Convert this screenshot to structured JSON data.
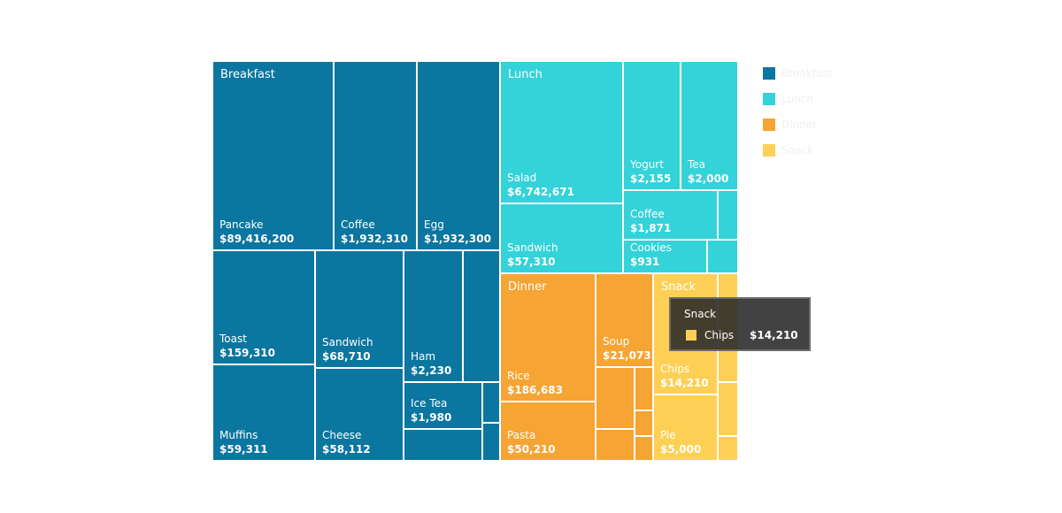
{
  "chart_data": {
    "type": "treemap",
    "value_format": "currency",
    "groups": [
      {
        "name": "Breakfast",
        "color": "#0b769f",
        "items": [
          {
            "name": "Pancake",
            "value": 89416200,
            "label": "$89,416,200"
          },
          {
            "name": "Coffee",
            "value": 1932310,
            "label": "$1,932,310"
          },
          {
            "name": "Egg",
            "value": 1932300,
            "label": "$1,932,300"
          },
          {
            "name": "Toast",
            "value": 159310,
            "label": "$159,310"
          },
          {
            "name": "Sandwich",
            "value": 68710,
            "label": "$68,710"
          },
          {
            "name": "Muffins",
            "value": 59311,
            "label": "$59,311"
          },
          {
            "name": "Cheese",
            "value": 58112,
            "label": "$58,112"
          },
          {
            "name": "Ham",
            "value": 2230,
            "label": "$2,230"
          },
          {
            "name": "Ice Tea",
            "value": 1980,
            "label": "$1,980"
          }
        ]
      },
      {
        "name": "Lunch",
        "color": "#33d3d9",
        "items": [
          {
            "name": "Salad",
            "value": 6742671,
            "label": "$6,742,671"
          },
          {
            "name": "Sandwich",
            "value": 57310,
            "label": "$57,310"
          },
          {
            "name": "Yogurt",
            "value": 2155,
            "label": "$2,155"
          },
          {
            "name": "Tea",
            "value": 2000,
            "label": "$2,000"
          },
          {
            "name": "Coffee",
            "value": 1871,
            "label": "$1,871"
          },
          {
            "name": "Cookies",
            "value": 931,
            "label": "$931"
          }
        ]
      },
      {
        "name": "Dinner",
        "color": "#f6a433",
        "items": [
          {
            "name": "Rice",
            "value": 186683,
            "label": "$186,683"
          },
          {
            "name": "Pasta",
            "value": 50210,
            "label": "$50,210"
          },
          {
            "name": "Soup",
            "value": 21073,
            "label": "$21,073"
          }
        ]
      },
      {
        "name": "Snack",
        "color": "#fdd055",
        "items": [
          {
            "name": "Chips",
            "value": 14210,
            "label": "$14,210"
          },
          {
            "name": "Pie",
            "value": 5000,
            "label": "$5,000"
          }
        ]
      }
    ],
    "legend": {
      "position": "top-right",
      "items": [
        "Breakfast",
        "Lunch",
        "Dinner",
        "Snack"
      ]
    },
    "tooltip": {
      "group": "Snack",
      "item": "Chips",
      "value": "$14,210",
      "color": "#fdd055"
    }
  }
}
